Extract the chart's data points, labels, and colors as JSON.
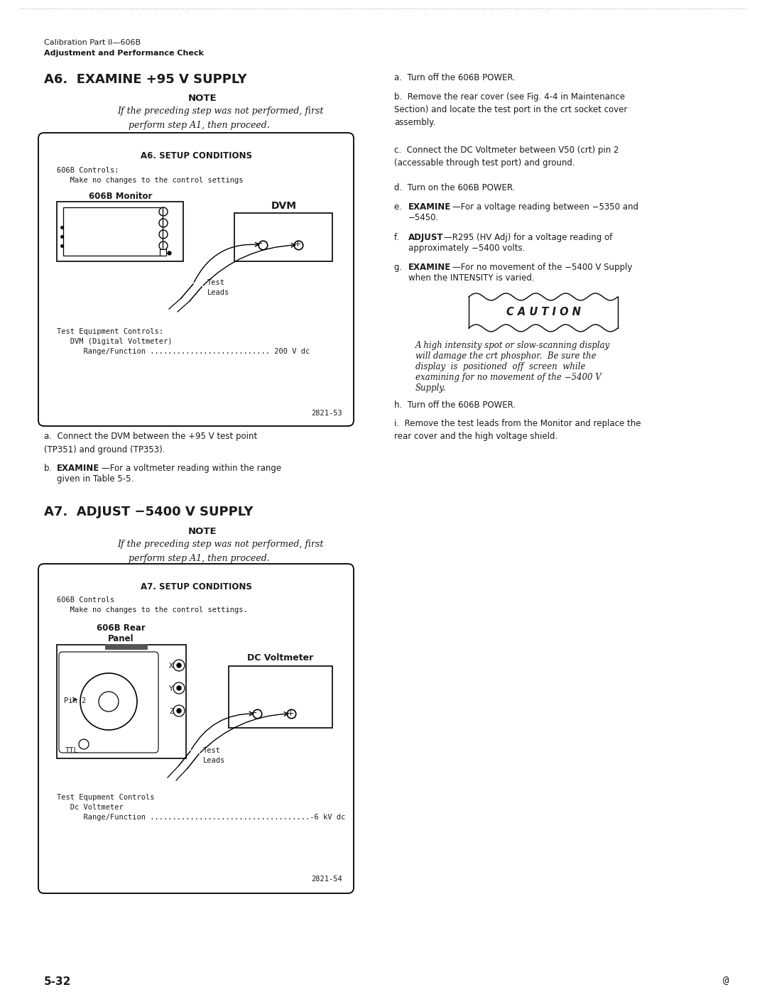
{
  "text_color": "#1a1a1a",
  "header_line1": "Calibration Part II—606B",
  "header_line2": "Adjustment and Performance Check",
  "section_a6_title": "A6.  EXAMINE +95 V SUPPLY",
  "section_a7_title": "A7.  ADJUST −5400 V SUPPLY",
  "note_label": "NOTE",
  "note_text_a6": "If the preceding step was not performed, first\n    perform step A1, then proceed.",
  "note_text_a7": "If the preceding step was not performed, first\n    perform step A1, then proceed.",
  "box_a6_title": "A6. SETUP CONDITIONS",
  "box_a6_controls_line1": "606B Controls:",
  "box_a6_controls_line2": "   Make no changes to the control settings",
  "box_a6_monitor_label": "606B Monitor",
  "box_a6_dvm_label": "DVM",
  "box_a6_test_leads": "Test\nLeads",
  "box_a6_equip_line1": "Test Equipment Controls:",
  "box_a6_equip_line2": "   DVM (Digital Voltmeter)",
  "box_a6_equip_line3": "      Range/Function ........................... 200 V dc",
  "box_a6_fig": "2821-53",
  "box_a7_title": "A7. SETUP CONDITIONS",
  "box_a7_controls_line1": "606B Controls",
  "box_a7_controls_line2": "   Make no changes to the control settings.",
  "box_a7_rear_label_line1": "606B Rear",
  "box_a7_rear_label_line2": "Panel",
  "box_a7_dvm_label": "DC Voltmeter",
  "box_a7_pin2": "Pin 2",
  "box_a7_ttl": "TTL",
  "box_a7_xyz": [
    "X",
    "Y",
    "Z"
  ],
  "box_a7_test_leads": "Test\nLeads",
  "box_a7_equip_line1": "Test Equpment Controls",
  "box_a7_equip_line2": "   Dc Voltmeter",
  "box_a7_equip_line3": "      Range/Function ....................................-6 kV dc",
  "box_a7_fig": "2821-54",
  "para_a_left": "a.  Connect the DVM between the +95 V test point\n(TP351) and ground (TP353).",
  "para_b_left_bold": "b. ",
  "para_b_left_bold_word": "EXAMINE",
  "para_b_left_rest": "—For a voltmeter reading within the range\ngiven in Table 5-5.",
  "para_a_right": "a.  Turn off the 606B POWER.",
  "para_b_right": "b.  Remove the rear cover (see Fig. 4-4 in Maintenance\nSection) and locate the test port in the crt socket cover\nassembly.",
  "para_c_right": "c.  Connect the DC Voltmeter between V50 (crt) pin 2\n(accessable through test port) and ground.",
  "para_d_right": "d.  Turn on the 606B POWER.",
  "para_e_right_bold": "EXAMINE",
  "para_e_right": "e. EXAMINE—For a voltage reading between −5350 and\n−5450.",
  "para_f_right_bold": "ADJUST",
  "para_f_right": "f. ADJUST—R295 (HV Adj) for a voltage reading of\napproximately −5400 volts.",
  "para_g_right_bold": "EXAMINE",
  "para_g_right": "g. EXAMINE—For no movement of the −5400 V Supply\nwhen the INTENSITY is varied.",
  "caution_label": "C A U T I O N",
  "caution_text_line1": "A high intensity spot or slow-scanning display",
  "caution_text_line2": "will damage the crt phosphor.  Be sure the",
  "caution_text_line3": "display  is  positioned  off  screen  while",
  "caution_text_line4": "examining for no movement of the −5400 V",
  "caution_text_line5": "Supply.",
  "para_h_right": "h.  Turn off the 606B POWER.",
  "para_i_right": "i.  Remove the test leads from the Monitor and replace the\nrear cover and the high voltage shield.",
  "page_num": "5-32"
}
